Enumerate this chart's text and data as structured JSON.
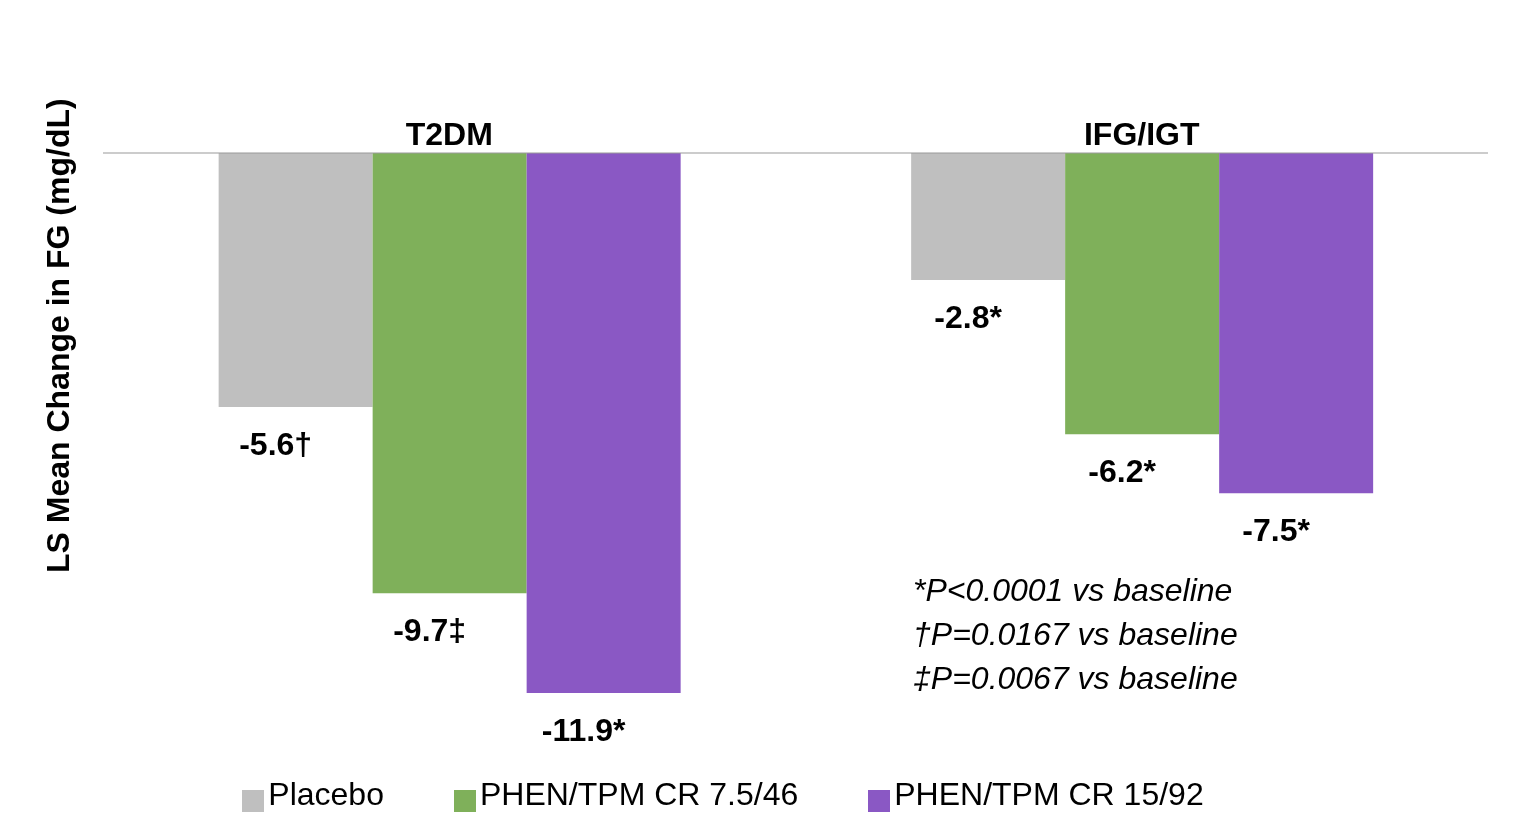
{
  "chart_data": {
    "type": "bar",
    "categories": [
      "T2DM",
      "IFG/IGT"
    ],
    "ylabel": "LS Mean Change in FG (mg/dL)",
    "legend": "bottom",
    "series": [
      {
        "name": "Placebo",
        "color": "#bfbfbf",
        "values": [
          -5.6,
          -2.8
        ],
        "value_labels": [
          "-5.6†",
          "-2.8*"
        ]
      },
      {
        "name": "PHEN/TPM CR 7.5/46",
        "color": "#7fb05a",
        "values": [
          -9.7,
          -6.2
        ],
        "value_labels": [
          "-9.7‡",
          "-6.2*"
        ]
      },
      {
        "name": "PHEN/TPM CR 15/92",
        "color": "#8a58c4",
        "values": [
          -11.9,
          -7.5
        ],
        "value_labels": [
          "-11.9*",
          "-7.5*"
        ]
      }
    ],
    "annotations": [
      "*P<0.0001 vs baseline",
      "†P=0.0167 vs baseline",
      "‡P=0.0067 vs baseline"
    ]
  }
}
